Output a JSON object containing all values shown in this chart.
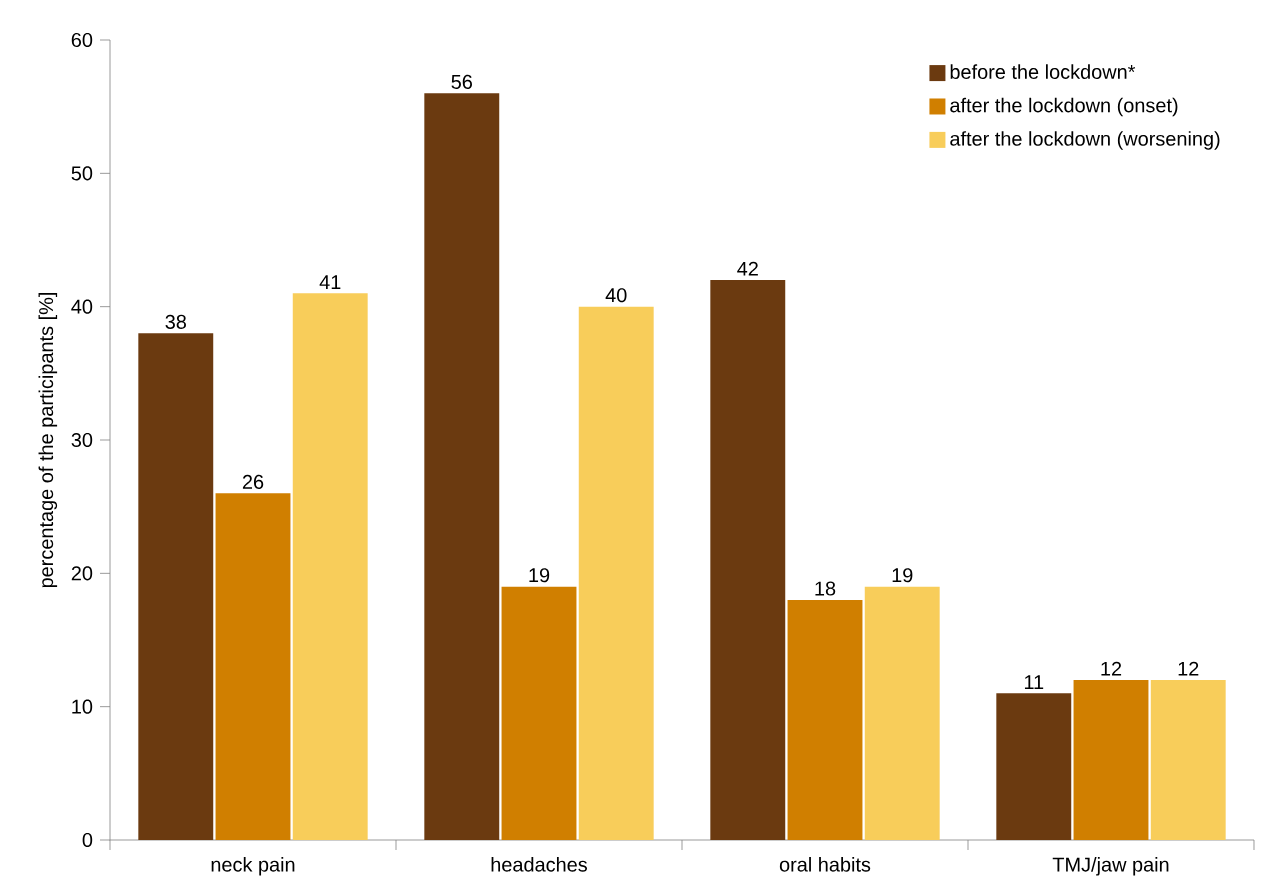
{
  "chart_data": {
    "type": "bar",
    "ylabel": "percentage of the participants [%]",
    "categories": [
      "neck pain",
      "headaches",
      "oral habits",
      "TMJ/jaw pain"
    ],
    "series": [
      {
        "name": "before the lockdown*",
        "color": "#6b3a10",
        "values": [
          38,
          56,
          42,
          11
        ]
      },
      {
        "name": "after the lockdown (onset)",
        "color": "#d07f00",
        "values": [
          26,
          19,
          18,
          12
        ]
      },
      {
        "name": "after the lockdown (worsening)",
        "color": "#f8cd5a",
        "values": [
          41,
          40,
          19,
          12
        ]
      }
    ],
    "ylim": [
      0,
      60
    ],
    "yticks": [
      0,
      10,
      20,
      30,
      40,
      50,
      60
    ],
    "grid": false,
    "legend": "top right",
    "data_labels": true
  }
}
